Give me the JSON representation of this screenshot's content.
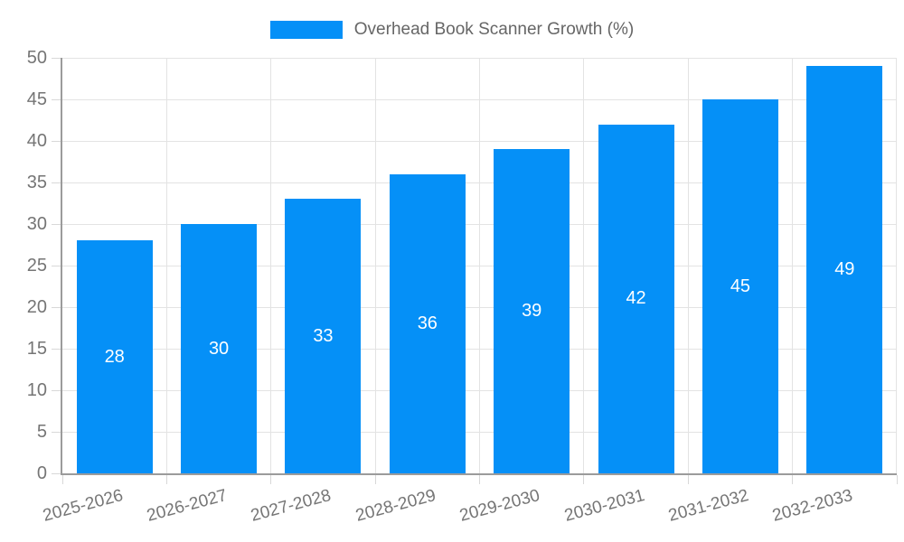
{
  "chart_data": {
    "type": "bar",
    "title": "",
    "legend_position": "top",
    "grid": true,
    "categories": [
      "2025-2026",
      "2026-2027",
      "2027-2028",
      "2028-2029",
      "2029-2030",
      "2030-2031",
      "2031-2032",
      "2032-2033"
    ],
    "series": [
      {
        "name": "Overhead Book Scanner Growth (%)",
        "values": [
          28,
          30,
          33,
          36,
          39,
          42,
          45,
          49
        ]
      }
    ],
    "bar_labels_shown": true,
    "xlabel": "",
    "ylabel": "",
    "ylim": [
      0,
      50
    ],
    "yticks": [
      0,
      5,
      10,
      15,
      20,
      25,
      30,
      35,
      40,
      45,
      50
    ],
    "x_label_rotation_deg": -15,
    "colors": {
      "bar": "#0590f7",
      "bar_label": "#ffffff",
      "grid_line": "#e3e3e3",
      "tick_mark": "#d8d8d8",
      "axis_line": "#9b9b9b",
      "tick_label": "#757575",
      "legend_text": "#666666",
      "background": "#ffffff"
    }
  }
}
